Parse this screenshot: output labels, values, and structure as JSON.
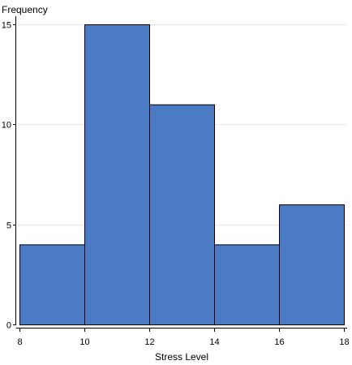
{
  "chart_data": {
    "type": "bar",
    "title": "",
    "xlabel": "Stress Level",
    "ylabel": "Frequency",
    "bins": [
      {
        "start": 8,
        "end": 10,
        "value": 4
      },
      {
        "start": 10,
        "end": 12,
        "value": 15
      },
      {
        "start": 12,
        "end": 14,
        "value": 11
      },
      {
        "start": 14,
        "end": 16,
        "value": 4
      },
      {
        "start": 16,
        "end": 18,
        "value": 6
      }
    ],
    "xticks": [
      8,
      10,
      12,
      14,
      16,
      18
    ],
    "yticks": [
      0,
      5,
      10,
      15
    ],
    "xlim": [
      8,
      18
    ],
    "ylim": [
      0,
      15
    ],
    "grid": "horizontal",
    "bar_color": "#4a7bc4",
    "bar_edge_color": "#000000",
    "grid_color": "#e6e6e6"
  }
}
